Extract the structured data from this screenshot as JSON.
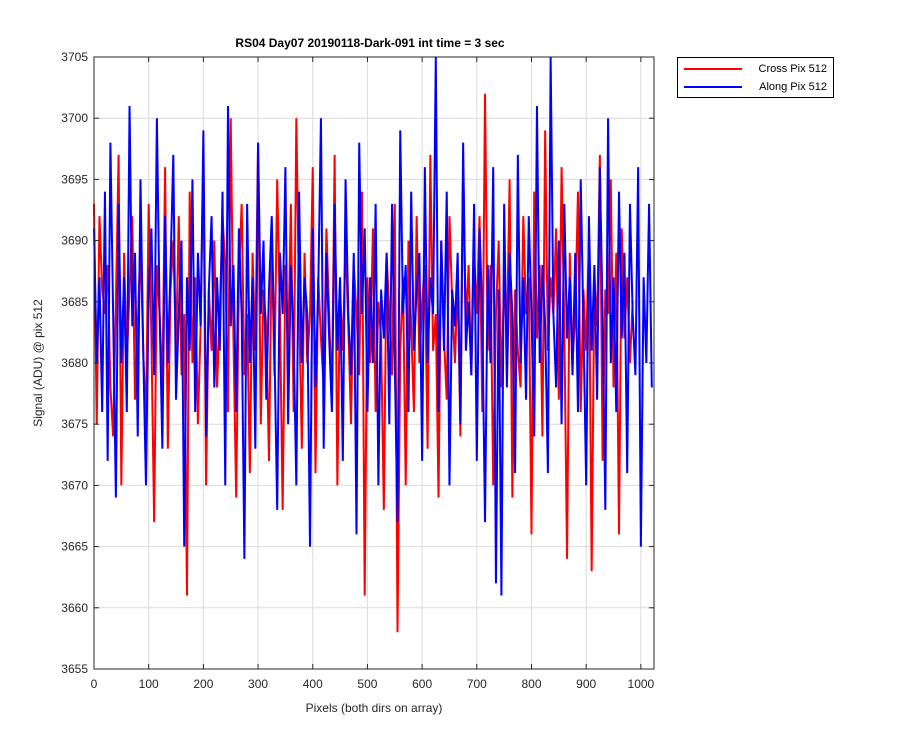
{
  "chart_data": {
    "type": "line",
    "title": "RS04 Day07 20190118-Dark-091 int time = 3 sec",
    "xlabel": "Pixels (both dirs on array)",
    "ylabel": "Signal (ADU) @ pix 512",
    "xlim": [
      0,
      1024
    ],
    "ylim": [
      3655,
      3705
    ],
    "xticks": [
      0,
      100,
      200,
      300,
      400,
      500,
      600,
      700,
      800,
      900,
      1000
    ],
    "yticks": [
      3655,
      3660,
      3665,
      3670,
      3675,
      3680,
      3685,
      3690,
      3695,
      3700,
      3705
    ],
    "grid": true,
    "legend_position": "outside top-right",
    "series": [
      {
        "name": "Cross Pix 512",
        "color": "#ff0000",
        "values": [
          3693,
          3675,
          3692,
          3686,
          3684,
          3688,
          3678,
          3674,
          3685,
          3697,
          3670,
          3689,
          3680,
          3686,
          3692,
          3677,
          3683,
          3690,
          3681,
          3675,
          3693,
          3682,
          3667,
          3688,
          3684,
          3678,
          3696,
          3673,
          3686,
          3690,
          3681,
          3692,
          3679,
          3684,
          3661,
          3694,
          3680,
          3687,
          3675,
          3683,
          3697,
          3670,
          3686,
          3681,
          3690,
          3678,
          3684,
          3692,
          3688,
          3676,
          3700,
          3682,
          3669,
          3687,
          3693,
          3679,
          3684,
          3671,
          3689,
          3681,
          3698,
          3675,
          3686,
          3683,
          3672,
          3690,
          3679,
          3695,
          3684,
          3668,
          3688,
          3681,
          3693,
          3676,
          3700,
          3685,
          3673,
          3689,
          3680,
          3684,
          3696,
          3671,
          3687,
          3682,
          3678,
          3691,
          3684,
          3677,
          3697,
          3670,
          3686,
          3681,
          3690,
          3683,
          3675,
          3688,
          3684,
          3679,
          3694,
          3661,
          3687,
          3680,
          3691,
          3676,
          3685,
          3682,
          3668,
          3689,
          3684,
          3679,
          3693,
          3658,
          3681,
          3687,
          3670,
          3690,
          3683,
          3676,
          3692,
          3680,
          3685,
          3688,
          3673,
          3697,
          3681,
          3684,
          3669,
          3690,
          3682,
          3677,
          3692,
          3685,
          3680,
          3687,
          3674,
          3696,
          3683,
          3688,
          3679,
          3689,
          3684,
          3692,
          3676,
          3702,
          3681,
          3688,
          3670,
          3684,
          3690,
          3678,
          3687,
          3682,
          3695,
          3669,
          3686,
          3681,
          3678,
          3692,
          3684,
          3687,
          3666,
          3694,
          3682,
          3688,
          3674,
          3699,
          3681,
          3687,
          3684,
          3691,
          3677,
          3696,
          3683,
          3664,
          3689,
          3680,
          3684,
          3694,
          3676,
          3686,
          3681,
          3690,
          3663,
          3687,
          3683,
          3697,
          3672,
          3686,
          3684,
          3695,
          3678,
          3689,
          3666,
          3691,
          3682,
          3687,
          3680,
          3685
        ],
        "x_step": 5
      },
      {
        "name": "Along Pix 512",
        "color": "#0000ff",
        "values": [
          3691,
          3680,
          3687,
          3676,
          3694,
          3672,
          3698,
          3684,
          3669,
          3693,
          3680,
          3687,
          3676,
          3701,
          3683,
          3689,
          3674,
          3695,
          3681,
          3670,
          3686,
          3691,
          3679,
          3700,
          3684,
          3673,
          3692,
          3680,
          3688,
          3697,
          3677,
          3684,
          3690,
          3665,
          3687,
          3681,
          3695,
          3676,
          3689,
          3683,
          3699,
          3674,
          3686,
          3692,
          3678,
          3687,
          3681,
          3694,
          3670,
          3701,
          3683,
          3688,
          3676,
          3691,
          3684,
          3664,
          3693,
          3680,
          3687,
          3673,
          3698,
          3684,
          3690,
          3677,
          3686,
          3692,
          3681,
          3668,
          3689,
          3684,
          3696,
          3675,
          3688,
          3682,
          3670,
          3694,
          3680,
          3687,
          3684,
          3665,
          3691,
          3678,
          3686,
          3700,
          3673,
          3689,
          3682,
          3676,
          3693,
          3681,
          3687,
          3672,
          3695,
          3684,
          3679,
          3689,
          3666,
          3698,
          3684,
          3691,
          3676,
          3687,
          3680,
          3693,
          3670,
          3686,
          3682,
          3689,
          3675,
          3693,
          3680,
          3667,
          3699,
          3684,
          3688,
          3676,
          3694,
          3681,
          3686,
          3689,
          3672,
          3696,
          3680,
          3687,
          3684,
          3705,
          3676,
          3690,
          3681,
          3694,
          3670,
          3686,
          3683,
          3689,
          3675,
          3698,
          3681,
          3685,
          3679,
          3693,
          3672,
          3691,
          3684,
          3667,
          3688,
          3680,
          3696,
          3662,
          3686,
          3661,
          3693,
          3678,
          3689,
          3684,
          3671,
          3697,
          3680,
          3687,
          3677,
          3692,
          3684,
          3674,
          3701,
          3680,
          3688,
          3683,
          3671,
          3705,
          3684,
          3678,
          3690,
          3675,
          3693,
          3682,
          3687,
          3679,
          3689,
          3676,
          3695,
          3683,
          3670,
          3692,
          3681,
          3688,
          3677,
          3696,
          3684,
          3668,
          3700,
          3680,
          3687,
          3676,
          3694,
          3682,
          3689,
          3671,
          3693,
          3684,
          3679,
          3696,
          3665,
          3687,
          3680,
          3693,
          3678
        ],
        "x_step": 5
      }
    ]
  }
}
